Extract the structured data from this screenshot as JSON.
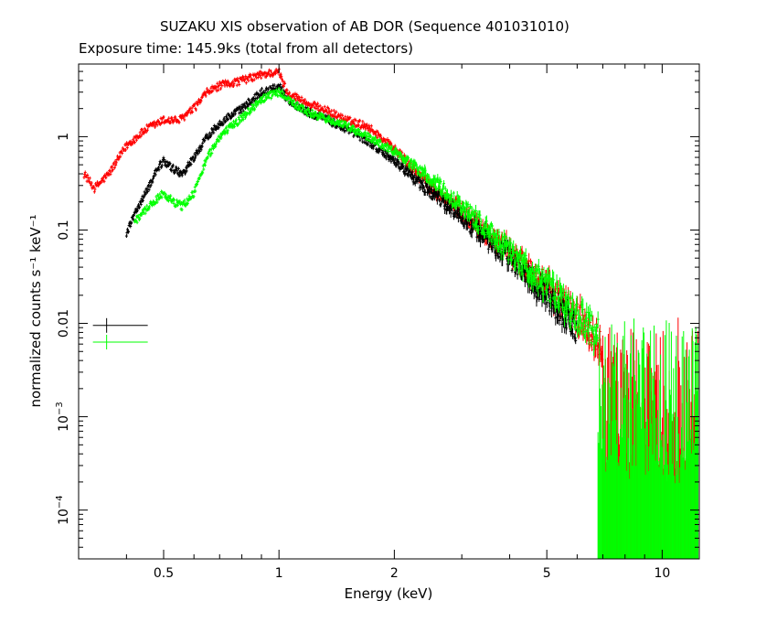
{
  "chart_data": {
    "type": "scatter",
    "title": "SUZAKU XIS observation of AB DOR (Sequence 401031010)",
    "subtitle": "Exposure time: 145.9ks (total from all detectors)",
    "xlabel": "Energy (keV)",
    "ylabel": "normalized counts s⁻¹ keV⁻¹",
    "xscale": "log",
    "yscale": "log",
    "xlim": [
      0.3,
      12.5
    ],
    "ylim": [
      3e-05,
      6
    ],
    "x_ticks": [
      {
        "value": 0.5,
        "label": "0.5"
      },
      {
        "value": 1,
        "label": "1"
      },
      {
        "value": 2,
        "label": "2"
      },
      {
        "value": 5,
        "label": "5"
      },
      {
        "value": 10,
        "label": "10"
      }
    ],
    "y_ticks": [
      {
        "value": 0.0001,
        "base": "10",
        "exp": "−4"
      },
      {
        "value": 0.001,
        "base": "10",
        "exp": "−3"
      },
      {
        "value": 0.01,
        "label": "0.01"
      },
      {
        "value": 0.1,
        "label": "0.1"
      },
      {
        "value": 1,
        "label": "1"
      }
    ],
    "grid": false,
    "series": [
      {
        "color": "#ff0000",
        "x": [
          0.31,
          0.33,
          0.36,
          0.4,
          0.45,
          0.5,
          0.55,
          0.6,
          0.65,
          0.7,
          0.8,
          0.9,
          0.95,
          1.0,
          1.05,
          1.1,
          1.2,
          1.3,
          1.5,
          1.7,
          2.0,
          2.5,
          3.0,
          3.5,
          4.0,
          5.0,
          6.0,
          7.0
        ],
        "y": [
          0.4,
          0.28,
          0.4,
          0.8,
          1.2,
          1.5,
          1.5,
          2.0,
          3.0,
          3.5,
          4.0,
          4.6,
          4.8,
          4.9,
          3.0,
          2.7,
          2.2,
          2.0,
          1.5,
          1.3,
          0.75,
          0.28,
          0.16,
          0.09,
          0.06,
          0.025,
          0.012,
          0.006
        ]
      },
      {
        "color": "#000000",
        "x": [
          0.4,
          0.42,
          0.45,
          0.48,
          0.5,
          0.53,
          0.56,
          0.6,
          0.65,
          0.7,
          0.8,
          0.9,
          0.95,
          1.0,
          1.05,
          1.1,
          1.2,
          1.3,
          1.5,
          1.7,
          2.0,
          2.5,
          3.0,
          3.5,
          4.0,
          5.0,
          6.0
        ],
        "y": [
          0.09,
          0.15,
          0.25,
          0.45,
          0.55,
          0.45,
          0.4,
          0.6,
          1.0,
          1.4,
          2.0,
          3.0,
          3.2,
          3.5,
          2.5,
          2.2,
          1.8,
          1.6,
          1.2,
          0.9,
          0.55,
          0.25,
          0.14,
          0.08,
          0.05,
          0.02,
          0.009
        ]
      },
      {
        "color": "#00ff00",
        "x": [
          0.42,
          0.44,
          0.46,
          0.5,
          0.53,
          0.56,
          0.6,
          0.65,
          0.7,
          0.8,
          0.9,
          0.95,
          1.0,
          1.05,
          1.1,
          1.2,
          1.3,
          1.5,
          1.7,
          2.0,
          2.5,
          3.0,
          3.5,
          4.0,
          5.0,
          6.0,
          6.8
        ],
        "y": [
          0.12,
          0.15,
          0.18,
          0.25,
          0.2,
          0.18,
          0.25,
          0.6,
          1.0,
          1.6,
          2.5,
          2.8,
          3.0,
          2.6,
          2.2,
          1.8,
          1.6,
          1.3,
          1.0,
          0.7,
          0.35,
          0.18,
          0.1,
          0.06,
          0.025,
          0.012,
          0.008
        ]
      }
    ],
    "legend_markers": [
      {
        "color": "#000000",
        "x": 0.355,
        "y": 0.0095
      },
      {
        "color": "#00ff00",
        "x": 0.355,
        "y": 0.0063
      }
    ]
  }
}
